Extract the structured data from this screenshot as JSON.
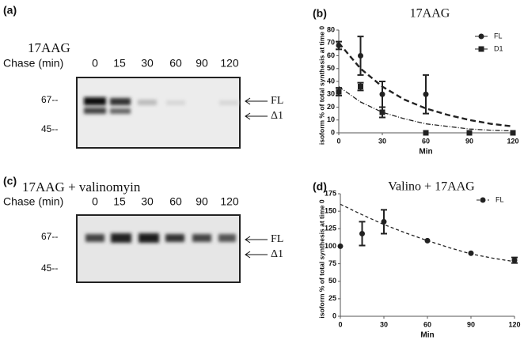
{
  "gels": [
    {
      "panel": "(a)",
      "title": "17AAG",
      "chase": "Chase (min)",
      "lanes": [
        "0",
        "15",
        "30",
        "60",
        "90",
        "120"
      ],
      "markers": [
        "67--",
        "45--"
      ],
      "bands": [
        "FL",
        "Δ1"
      ]
    },
    {
      "panel": "(c)",
      "title": "17AAG + valinomyin",
      "chase": "Chase (min)",
      "lanes": [
        "0",
        "15",
        "30",
        "60",
        "90",
        "120"
      ],
      "markers": [
        "67--",
        "45--"
      ],
      "bands": [
        "FL",
        "Δ1"
      ]
    }
  ],
  "chart_data": [
    {
      "type": "scatter",
      "panel": "(b)",
      "title": "17AAG",
      "xlabel": "Min",
      "ylabel": "isoform % of total synthesis at time 0",
      "xlim": [
        0,
        120
      ],
      "xticks": [
        0,
        30,
        60,
        90,
        120
      ],
      "ylim": [
        0,
        80
      ],
      "yticks": [
        0,
        10,
        20,
        30,
        40,
        50,
        60,
        70,
        80
      ],
      "series": [
        {
          "name": "FL",
          "color": "#222222",
          "marker": "circle",
          "dash": "7,4",
          "x": [
            0,
            15,
            30,
            60,
            90,
            120
          ],
          "values": [
            68,
            60,
            30,
            30,
            0,
            0
          ],
          "errors": [
            3,
            15,
            10,
            15,
            null,
            null
          ],
          "fit": {
            "x": [
              0,
              15,
              30,
              45,
              60,
              75,
              90,
              105,
              120
            ],
            "values": [
              70,
              50,
              36,
              26,
              19,
              14,
              10,
              7,
              5
            ]
          }
        },
        {
          "name": "D1",
          "color": "#222222",
          "marker": "square",
          "dash": "6,2,1,2",
          "x": [
            0,
            15,
            30,
            60,
            90,
            120
          ],
          "values": [
            32,
            36,
            16,
            0,
            0,
            0
          ],
          "errors": [
            3,
            3,
            4,
            null,
            null,
            null
          ],
          "fit": {
            "x": [
              0,
              15,
              30,
              45,
              60,
              75,
              90,
              105,
              120
            ],
            "values": [
              36,
              24,
              16,
              11,
              7,
              5,
              3,
              2,
              1.5
            ]
          }
        }
      ]
    },
    {
      "type": "scatter",
      "panel": "(d)",
      "title": "Valino + 17AAG",
      "xlabel": "Min",
      "ylabel": "isoform % of total synthesis at time 0",
      "xlim": [
        0,
        120
      ],
      "xticks": [
        0,
        30,
        60,
        90,
        120
      ],
      "ylim": [
        0,
        175
      ],
      "yticks": [
        0,
        25,
        50,
        75,
        100,
        125,
        150,
        175
      ],
      "series": [
        {
          "name": "FL",
          "color": "#222222",
          "marker": "circle",
          "dash": "4,3",
          "x": [
            0,
            15,
            30,
            60,
            90,
            120
          ],
          "values": [
            100,
            118,
            135,
            108,
            90,
            80
          ],
          "errors": [
            null,
            17,
            17,
            null,
            null,
            4
          ],
          "fit": {
            "x": [
              0,
              15,
              30,
              45,
              60,
              75,
              90,
              105,
              120
            ],
            "values": [
              160,
              145,
              131,
              119,
              108,
              98,
              89,
              83,
              78
            ]
          }
        }
      ]
    }
  ]
}
